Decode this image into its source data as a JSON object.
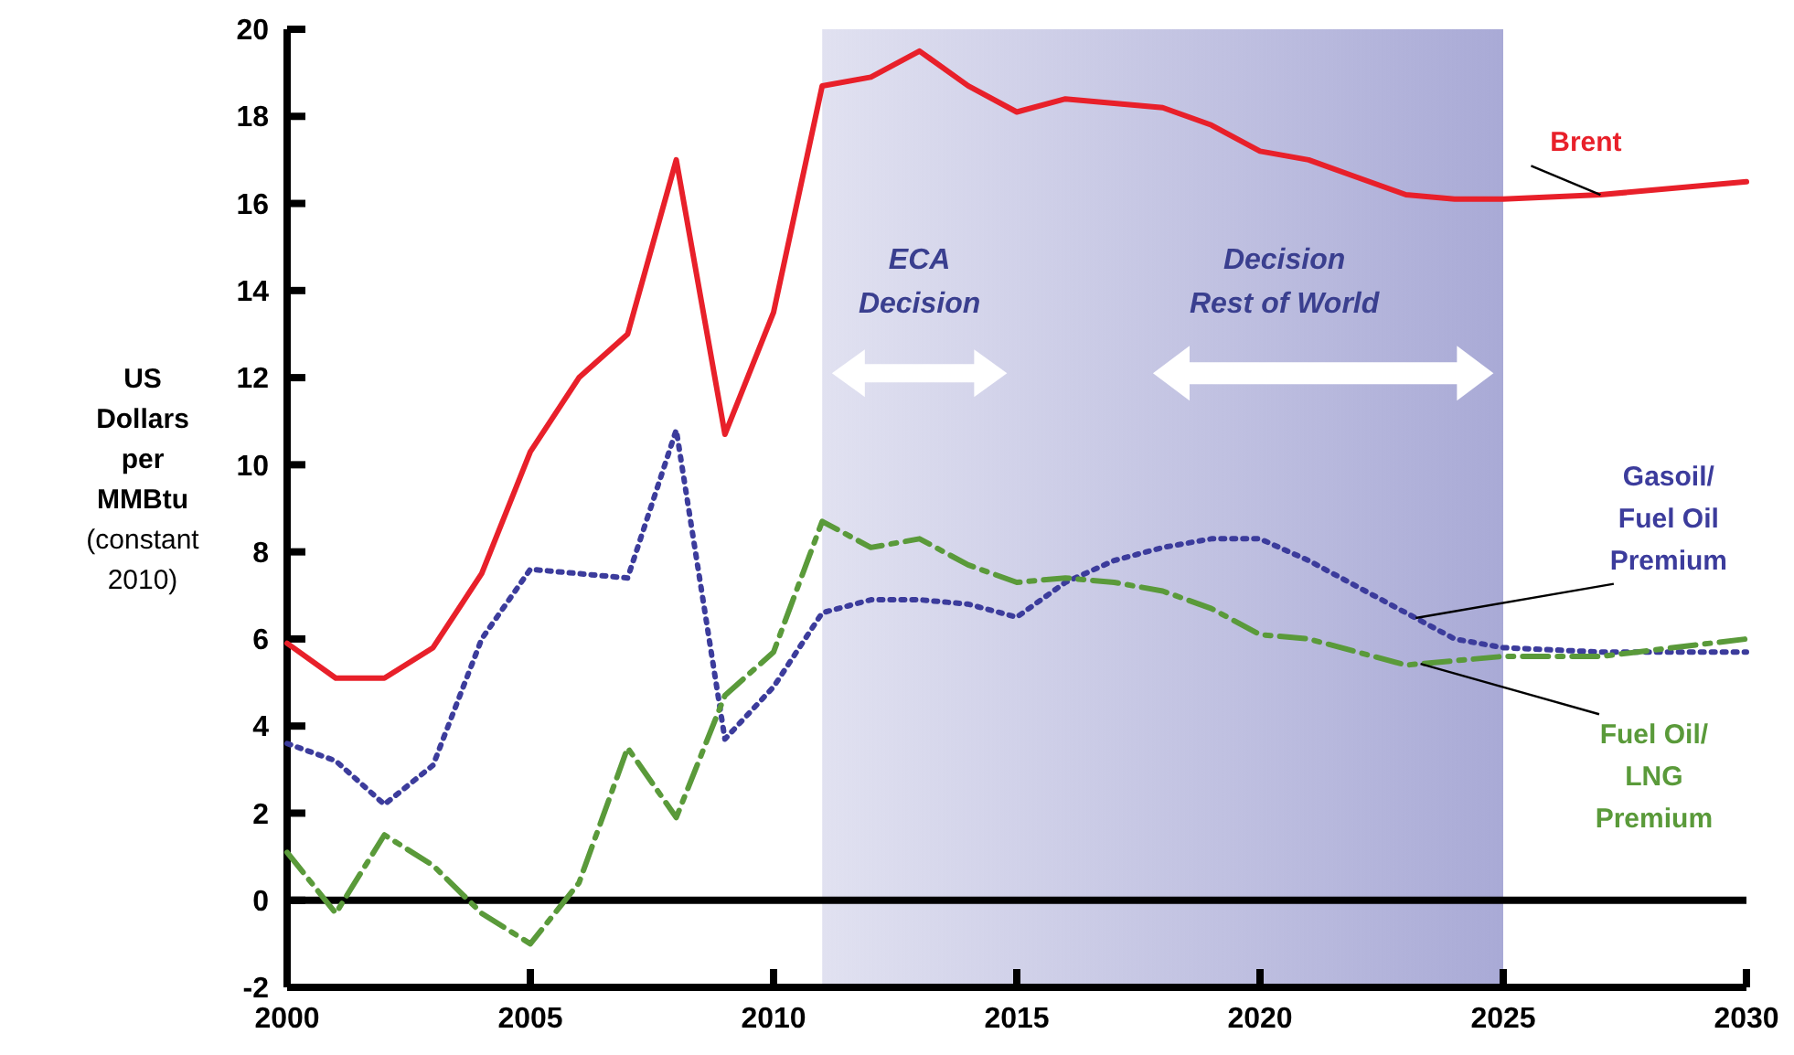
{
  "chart_data": {
    "type": "line",
    "ylabel": "US Dollars per MMBtu (constant 2010)",
    "x": [
      2000,
      2001,
      2002,
      2003,
      2004,
      2005,
      2006,
      2007,
      2008,
      2009,
      2010,
      2011,
      2012,
      2013,
      2014,
      2015,
      2016,
      2017,
      2018,
      2019,
      2020,
      2021,
      2022,
      2023,
      2024,
      2025,
      2027,
      2030
    ],
    "series": [
      {
        "name": "Brent",
        "color": "#e8202a",
        "line_style": "solid",
        "values": [
          5.9,
          5.1,
          5.1,
          5.8,
          7.5,
          10.3,
          12.0,
          13.0,
          17.0,
          10.7,
          13.5,
          18.7,
          18.9,
          19.5,
          18.7,
          18.1,
          18.4,
          18.3,
          18.2,
          17.8,
          17.2,
          17.0,
          16.6,
          16.2,
          16.1,
          16.1,
          16.2,
          16.5
        ]
      },
      {
        "name": "Gasoil/Fuel Oil Premium",
        "color": "#3c3c9c",
        "line_style": "dotted",
        "values": [
          3.6,
          3.2,
          2.2,
          3.1,
          6.0,
          7.6,
          7.5,
          7.4,
          10.8,
          3.7,
          4.9,
          6.6,
          6.9,
          6.9,
          6.8,
          6.5,
          7.3,
          7.8,
          8.1,
          8.3,
          8.3,
          7.8,
          7.2,
          6.6,
          6.0,
          5.8,
          5.7,
          5.7
        ]
      },
      {
        "name": "Fuel Oil/LNG Premium",
        "color": "#5a9a3a",
        "line_style": "dashed",
        "values": [
          1.1,
          -0.3,
          1.5,
          0.8,
          -0.3,
          -1.0,
          0.4,
          3.5,
          1.9,
          4.7,
          5.7,
          8.7,
          8.1,
          8.3,
          7.7,
          7.3,
          7.4,
          7.3,
          7.1,
          6.7,
          6.1,
          6.0,
          5.7,
          5.4,
          5.5,
          5.6,
          5.6,
          6.0
        ]
      }
    ],
    "xlim": [
      2000,
      2030
    ],
    "xticks": [
      2000,
      2005,
      2010,
      2015,
      2020,
      2025,
      2030
    ],
    "ylim": [
      -2,
      20
    ],
    "yticks": [
      -2,
      0,
      2,
      4,
      6,
      8,
      10,
      12,
      14,
      16,
      18,
      20
    ],
    "ref_lines": [
      {
        "axis": "y",
        "value": 0,
        "color": "#000000"
      }
    ],
    "bands": [
      {
        "axis": "x",
        "from": 2011,
        "to": 2025,
        "color": "#a9aad6"
      }
    ],
    "annotations": [
      "ECA Decision",
      "Decision Rest of World"
    ],
    "grid": false
  }
}
